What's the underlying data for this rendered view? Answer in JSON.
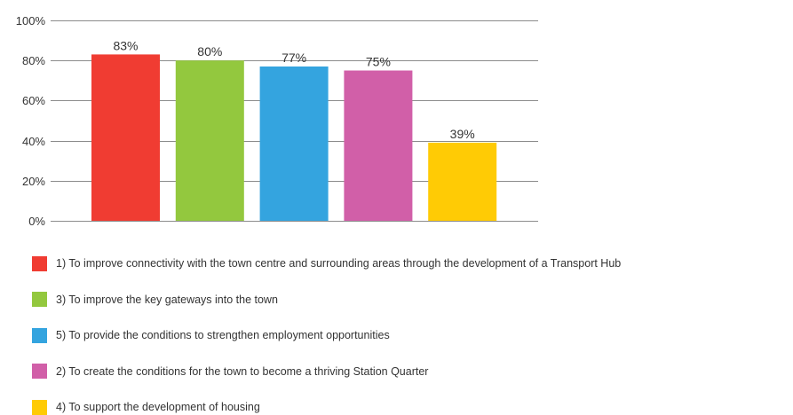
{
  "chart_data": {
    "type": "bar",
    "categories": [
      "1) To improve connectivity with the town centre and surrounding areas through the development of a Transport Hub",
      "3) To improve the key gateways into the town",
      "5) To provide the conditions to strengthen employment opportunities",
      "2) To create the conditions for the town to become a thriving Station Quarter",
      "4) To support the development of housing"
    ],
    "values": [
      83,
      80,
      77,
      75,
      39
    ],
    "data_labels": [
      "83%",
      "80%",
      "77%",
      "75%",
      "39%"
    ],
    "colors": [
      "#f03c32",
      "#93c83e",
      "#34a4df",
      "#d15fa8",
      "#ffcb05"
    ],
    "y_ticks": [
      0,
      20,
      40,
      60,
      80,
      100
    ],
    "y_tick_labels": [
      "0%",
      "20%",
      "40%",
      "60%",
      "80%",
      "100%"
    ],
    "ylim": [
      0,
      100
    ],
    "grid": true,
    "legend_position": "bottom"
  }
}
